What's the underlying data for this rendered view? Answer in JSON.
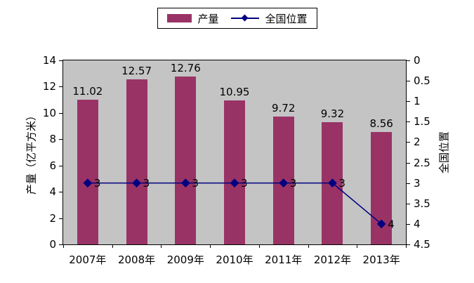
{
  "legend": {
    "bar_label": "产量",
    "line_label": "全国位置"
  },
  "colors": {
    "bar": "#993366",
    "line": "#000080",
    "marker": "#000080",
    "plot_bg": "#c4c4c4",
    "axis": "#000000",
    "page_bg": "#ffffff",
    "text": "#000000"
  },
  "chart_data": {
    "type": "bar",
    "subtype": "bar-line-combo",
    "categories": [
      "2007年",
      "2008年",
      "2009年",
      "2010年",
      "2011年",
      "2012年",
      "2013年"
    ],
    "series": [
      {
        "name": "产量",
        "type": "bar",
        "axis": "left",
        "color": "#993366",
        "values": [
          11.02,
          12.57,
          12.76,
          10.95,
          9.72,
          9.32,
          8.56
        ],
        "data_labels": [
          "11.02",
          "12.57",
          "12.76",
          "10.95",
          "9.72",
          "9.32",
          "8.56"
        ]
      },
      {
        "name": "全国位置",
        "type": "line",
        "axis": "right",
        "color": "#000080",
        "marker": "diamond",
        "values": [
          3,
          3,
          3,
          3,
          3,
          3,
          4
        ],
        "data_labels": [
          "3",
          "3",
          "3",
          "3",
          "3",
          "3",
          "4"
        ]
      }
    ],
    "left_axis": {
      "title": "产量（亿平方米）",
      "min": 0,
      "max": 14,
      "step": 2,
      "ticks": [
        "0",
        "2",
        "4",
        "6",
        "8",
        "10",
        "12",
        "14"
      ]
    },
    "right_axis": {
      "title": "全国位置",
      "min": 0,
      "max": 4.5,
      "step": 0.5,
      "direction": "increases_downward",
      "ticks": [
        "0",
        "0.5",
        "1",
        "1.5",
        "2",
        "2.5",
        "3",
        "3.5",
        "4",
        "4.5"
      ]
    },
    "grid": false,
    "legend_position": "top-center",
    "plot_background": "gray"
  }
}
